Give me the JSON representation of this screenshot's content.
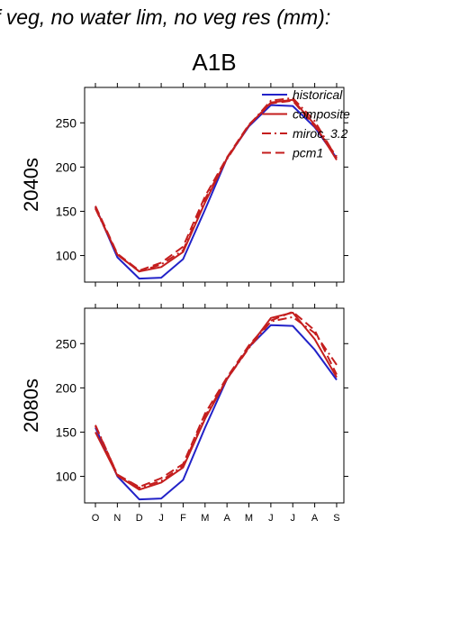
{
  "page": {
    "title": "f veg, no water lim, no veg res (mm):",
    "scenario": "A1B"
  },
  "colors": {
    "historical": "#2222c8",
    "composite": "#c41e1e",
    "miroc_3.2": "#c41e1e",
    "pcm1": "#c41e1e",
    "axis": "#000000"
  },
  "chart_data": [
    {
      "type": "line",
      "panel_label": "2040s",
      "categories": [
        "O",
        "N",
        "D",
        "J",
        "F",
        "M",
        "A",
        "M",
        "J",
        "J",
        "A",
        "S"
      ],
      "ylim": [
        70,
        290
      ],
      "yticks": [
        100,
        150,
        200,
        250
      ],
      "legend": [
        "historical",
        "composite",
        "miroc_3.2",
        "pcm1"
      ],
      "legend_placement": "top-right",
      "series": [
        {
          "name": "historical",
          "style": "solid",
          "values": [
            155,
            98,
            74,
            75,
            96,
            152,
            210,
            246,
            270,
            269,
            245,
            210
          ]
        },
        {
          "name": "composite",
          "style": "solid",
          "values": [
            154,
            101,
            82,
            87,
            104,
            160,
            210,
            247,
            273,
            276,
            248,
            208
          ]
        },
        {
          "name": "miroc_3.2",
          "style": "dashdot",
          "values": [
            153,
            101,
            82,
            90,
            106,
            164,
            209,
            247,
            275,
            278,
            252,
            210
          ]
        },
        {
          "name": "pcm1",
          "style": "dash",
          "values": [
            156,
            102,
            83,
            92,
            110,
            167,
            211,
            248,
            272,
            275,
            246,
            212
          ]
        }
      ]
    },
    {
      "type": "line",
      "panel_label": "2080s",
      "categories": [
        "O",
        "N",
        "D",
        "J",
        "F",
        "M",
        "A",
        "M",
        "J",
        "J",
        "A",
        "S"
      ],
      "ylim": [
        70,
        290
      ],
      "yticks": [
        100,
        150,
        200,
        250
      ],
      "series": [
        {
          "name": "historical",
          "style": "solid",
          "values": [
            155,
            100,
            74,
            75,
            96,
            155,
            210,
            246,
            271,
            270,
            243,
            209
          ]
        },
        {
          "name": "composite",
          "style": "solid",
          "values": [
            150,
            101,
            85,
            93,
            110,
            165,
            210,
            246,
            279,
            285,
            255,
            212
          ]
        },
        {
          "name": "miroc_3.2",
          "style": "dashdot",
          "values": [
            158,
            102,
            87,
            95,
            112,
            168,
            210,
            245,
            275,
            280,
            262,
            226
          ]
        },
        {
          "name": "pcm1",
          "style": "dash",
          "values": [
            157,
            102,
            88,
            98,
            114,
            171,
            212,
            248,
            276,
            286,
            265,
            215
          ]
        }
      ]
    }
  ]
}
